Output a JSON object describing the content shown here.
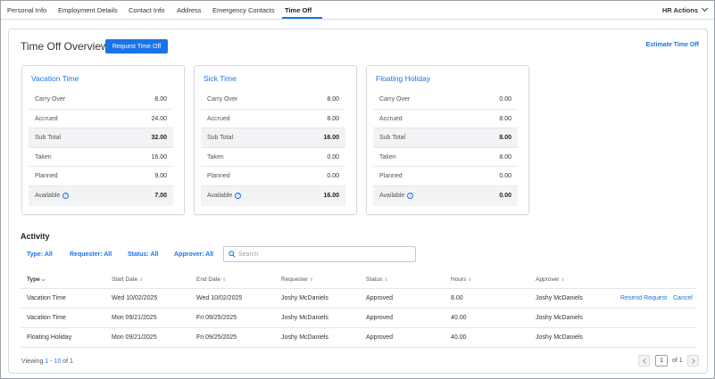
{
  "nav": {
    "tabs": [
      "Personal Info",
      "Employment Details",
      "Contact Info",
      "Address",
      "Emergency Contacts",
      "Time Off"
    ],
    "active_tab": "Time Off",
    "hr_actions": "HR Actions"
  },
  "overview": {
    "title": "Time Off Overview",
    "request_button": "Request Time Off",
    "estimate_link": "Estimate Time Off"
  },
  "cards": [
    {
      "title": "Vacation Time",
      "rows": [
        {
          "label": "Carry Over",
          "value": "8.00"
        },
        {
          "label": "Accrued",
          "value": "24.00"
        },
        {
          "label": "Sub Total",
          "value": "32.00"
        },
        {
          "label": "Taken",
          "value": "16.00"
        },
        {
          "label": "Planned",
          "value": "9.00"
        },
        {
          "label": "Available",
          "value": "7.00"
        }
      ]
    },
    {
      "title": "Sick Time",
      "rows": [
        {
          "label": "Carry Over",
          "value": "8.00"
        },
        {
          "label": "Accrued",
          "value": "8.00"
        },
        {
          "label": "Sub Total",
          "value": "16.00"
        },
        {
          "label": "Taken",
          "value": "0.00"
        },
        {
          "label": "Planned",
          "value": "0.00"
        },
        {
          "label": "Available",
          "value": "16.00"
        }
      ]
    },
    {
      "title": "Floating Holiday",
      "rows": [
        {
          "label": "Carry Over",
          "value": "0.00"
        },
        {
          "label": "Accrued",
          "value": "8.00"
        },
        {
          "label": "Sub Total",
          "value": "8.00"
        },
        {
          "label": "Taken",
          "value": "8.00"
        },
        {
          "label": "Planned",
          "value": "0.00"
        },
        {
          "label": "Available",
          "value": "0.00"
        }
      ]
    }
  ],
  "activity": {
    "title": "Activity",
    "filters": [
      "Type: All",
      "Requester: All",
      "Status: All",
      "Approver: All"
    ],
    "search_placeholder": "Search",
    "columns": [
      "Type",
      "Start Date",
      "End Date",
      "Requester",
      "Status",
      "Hours",
      "Approver"
    ],
    "rows": [
      {
        "type": "Vacation Time",
        "start": "Wed 10/02/2025",
        "end": "Wed 10/02/2025",
        "requester": "Joshy McDaniels",
        "status": "Approved",
        "hours": "8.00",
        "approver": "Joshy McDaniels",
        "actions": [
          "Resend Request",
          "Cancel"
        ]
      },
      {
        "type": "Vacation Time",
        "start": "Mon 09/21/2025",
        "end": "Fri 09/25/2025",
        "requester": "Joshy McDaniels",
        "status": "Approved",
        "hours": "40.00",
        "approver": "Joshy McDaniels",
        "actions": []
      },
      {
        "type": "Floating Holiday",
        "start": "Mon 09/21/2025",
        "end": "Fri 09/25/2025",
        "requester": "Joshy McDaniels",
        "status": "Approved",
        "hours": "40.00",
        "approver": "Joshy McDaniels",
        "actions": []
      }
    ]
  },
  "footer": {
    "viewing_prefix": "Viewing ",
    "range_start": "1",
    "range_sep": " - ",
    "range_end": "10",
    "viewing_suffix": " of 1",
    "page": "1",
    "page_of": "of 1"
  },
  "colors": {
    "accent": "#1a73e8",
    "border": "#d8dbe0",
    "shaded_row": "#f2f3f5"
  },
  "icons": {
    "help": "help-circle-icon",
    "search": "search-icon",
    "sort": "sort-icon",
    "dropdown": "chevron-down-icon"
  }
}
